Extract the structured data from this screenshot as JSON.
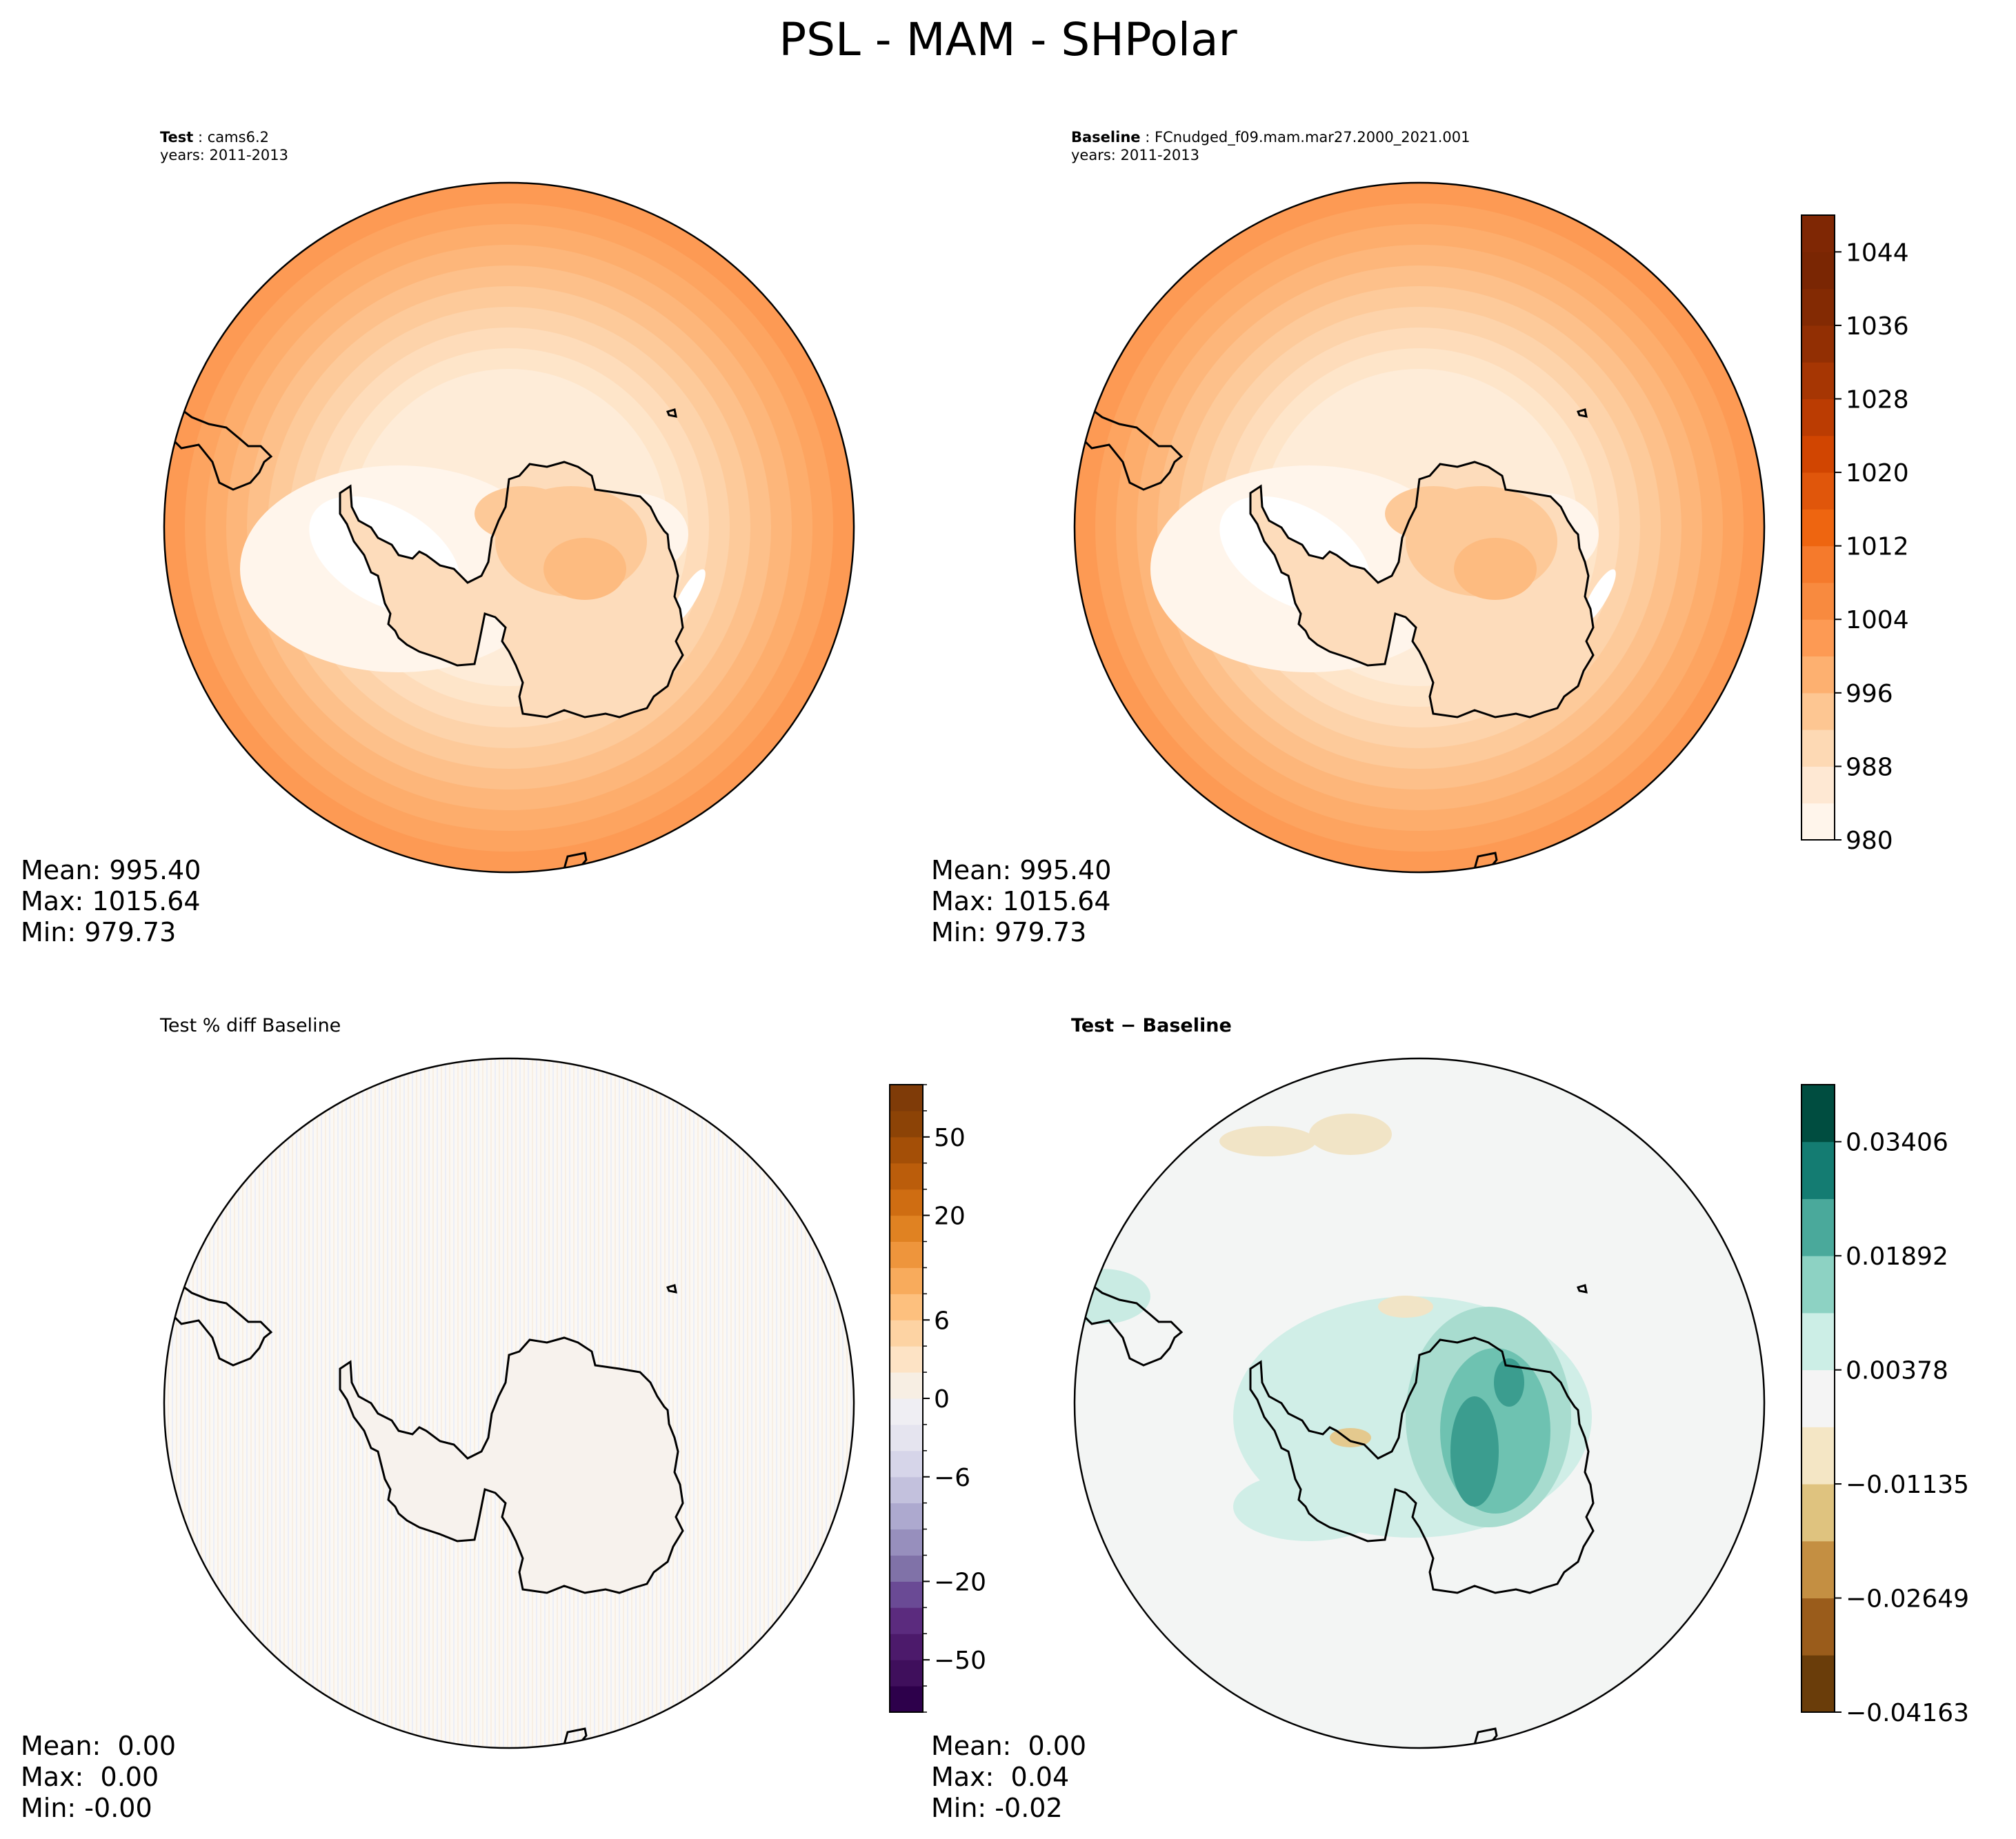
{
  "figure": {
    "title": "PSL - MAM - SHPolar"
  },
  "chart_data": [
    {
      "type": "heatmap",
      "panel": "test",
      "title_label": "Test",
      "title_case": "cams6.2",
      "years": "years: 2011-2013",
      "stats": {
        "mean": "Mean: 995.40",
        "max": "Max: 1015.64",
        "min": "Min: 979.73"
      },
      "projection": "South polar stereographic",
      "field": "PSL",
      "value_range": [
        979.73,
        1015.64
      ]
    },
    {
      "type": "heatmap",
      "panel": "baseline",
      "title_label": "Baseline",
      "title_case": "FCnudged_f09.mam.mar27.2000_2021.001",
      "years": "years: 2011-2013",
      "stats": {
        "mean": "Mean: 995.40",
        "max": "Max: 1015.64",
        "min": "Min: 979.73"
      },
      "projection": "South polar stereographic",
      "field": "PSL",
      "value_range": [
        979.73,
        1015.64
      ],
      "colorbar": {
        "min": 980,
        "max": 1048,
        "step": 4,
        "ticks": [
          980,
          988,
          996,
          1004,
          1012,
          1020,
          1028,
          1036,
          1044
        ],
        "tick_labels": [
          "980",
          "988",
          "996",
          "1004",
          "1012",
          "1020",
          "1028",
          "1036",
          "1044"
        ]
      }
    },
    {
      "type": "heatmap",
      "panel": "pct_diff",
      "title": "Test % diff Baseline",
      "stats": {
        "mean": "Mean:  0.00",
        "max": "Max:  0.00",
        "min": "Min: -0.00"
      },
      "colorbar": {
        "levels": [
          -100,
          -75,
          -50,
          -40,
          -30,
          -20,
          -15,
          -10,
          -8,
          -6,
          -4,
          -2,
          0,
          2,
          4,
          6,
          8,
          10,
          15,
          20,
          30,
          40,
          50,
          75,
          100
        ],
        "tick_labels": [
          "−50",
          "−20",
          "−6",
          "0",
          "6",
          "20",
          "50"
        ],
        "tick_levels": [
          -50,
          -20,
          -6,
          0,
          6,
          20,
          50
        ]
      }
    },
    {
      "type": "heatmap",
      "panel": "difference",
      "title_label": "Test − Baseline",
      "stats": {
        "mean": "Mean:  0.00",
        "max": "Max:  0.04",
        "min": "Min: -0.02"
      },
      "colorbar": {
        "min": -0.04163,
        "max": 0.04163,
        "n_levels": 11,
        "tick_labels": [
          "−0.04163",
          "−0.02649",
          "−0.01135",
          "0.00378",
          "0.01892",
          "0.03406"
        ],
        "tick_values": [
          -0.04163,
          -0.02649,
          -0.01135,
          0.00378,
          0.01892,
          0.03406
        ]
      }
    }
  ]
}
